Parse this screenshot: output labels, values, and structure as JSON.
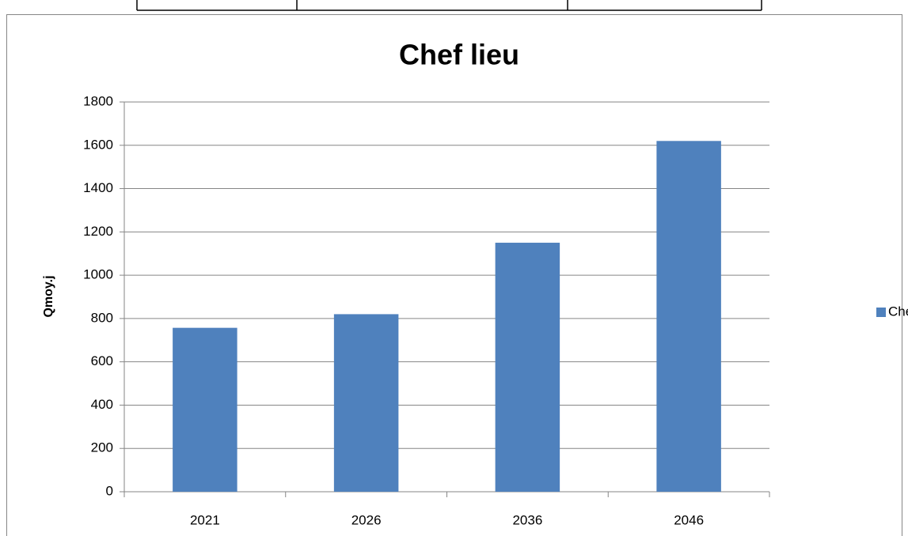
{
  "chart_data": {
    "type": "bar",
    "title": "Chef lieu",
    "y_label": "Qmoy.j",
    "categories": [
      "2021",
      "2026",
      "2036",
      "2046"
    ],
    "series": [
      {
        "name": "Chef lieu",
        "color": "#4f81bd",
        "values": [
          757,
          820,
          1150,
          1620
        ]
      }
    ],
    "ylim": [
      0,
      1800
    ],
    "yticks": [
      0,
      200,
      400,
      600,
      800,
      1000,
      1200,
      1400,
      1600,
      1800
    ],
    "grid": true,
    "legend": "right"
  }
}
